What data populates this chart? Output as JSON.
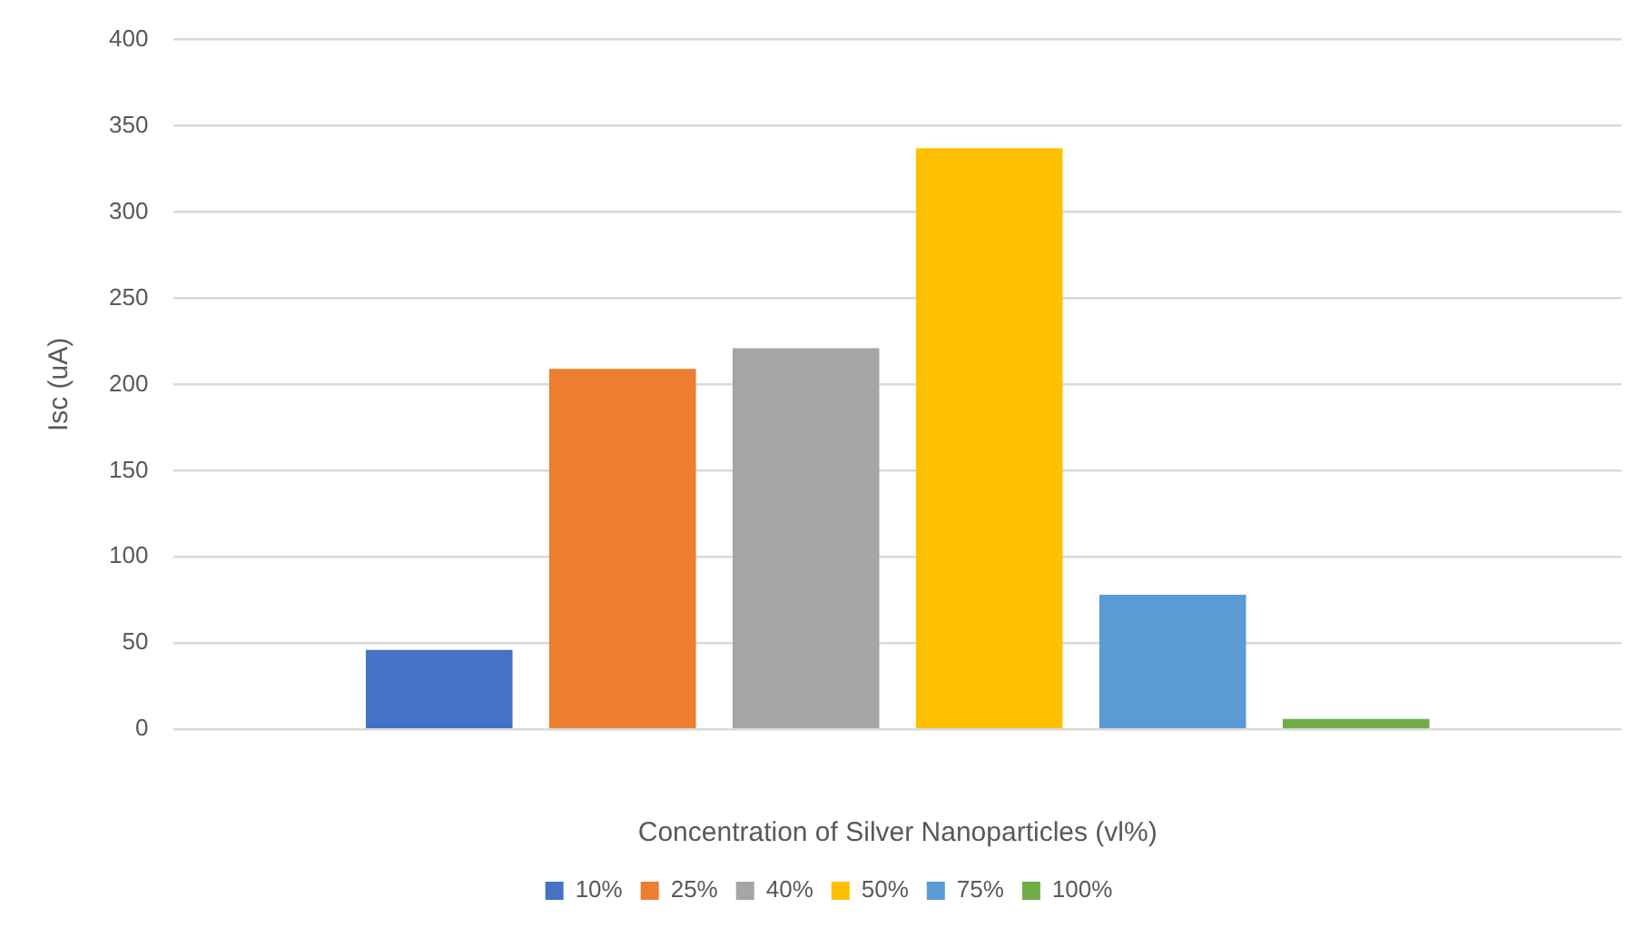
{
  "chart_data": {
    "type": "bar",
    "xlabel": "Concentration of Silver Nanoparticles (vl%)",
    "ylabel": "Isc (uA)",
    "categories": [
      null
    ],
    "series": [
      {
        "name": "10%",
        "color": "#4472c4",
        "values": [
          46
        ]
      },
      {
        "name": "25%",
        "color": "#ed7d31",
        "values": [
          209
        ]
      },
      {
        "name": "40%",
        "color": "#a5a5a5",
        "values": [
          221
        ]
      },
      {
        "name": "50%",
        "color": "#ffc000",
        "values": [
          337
        ]
      },
      {
        "name": "75%",
        "color": "#5b9bd5",
        "values": [
          78
        ]
      },
      {
        "name": "100%",
        "color": "#70ad47",
        "values": [
          6
        ]
      }
    ],
    "ylim": [
      0,
      400
    ],
    "yticks": [
      0,
      50,
      100,
      150,
      200,
      250,
      300,
      350,
      400
    ],
    "grid": "y",
    "legend": "bottom"
  }
}
